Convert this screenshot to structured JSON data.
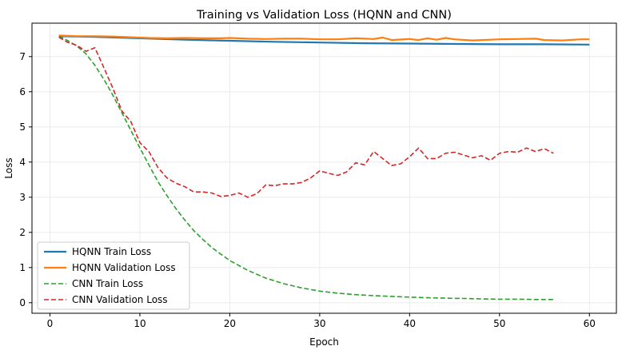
{
  "chart_data": {
    "type": "line",
    "title": "Training vs Validation Loss (HQNN and CNN)",
    "xlabel": "Epoch",
    "ylabel": "Loss",
    "xlim": [
      -2,
      63
    ],
    "ylim": [
      -0.3,
      7.95
    ],
    "xticks": [
      0,
      10,
      20,
      30,
      40,
      50,
      60
    ],
    "yticks": [
      0,
      1,
      2,
      3,
      4,
      5,
      6,
      7
    ],
    "grid": true,
    "legend_position": "lower-left",
    "series": [
      {
        "name": "HQNN Train Loss",
        "color": "#1f77b4",
        "style": "solid",
        "x": [
          1,
          5,
          10,
          15,
          20,
          25,
          30,
          35,
          40,
          45,
          50,
          55,
          60
        ],
        "y": [
          7.58,
          7.56,
          7.52,
          7.48,
          7.45,
          7.42,
          7.4,
          7.38,
          7.37,
          7.36,
          7.35,
          7.35,
          7.34
        ]
      },
      {
        "name": "HQNN Validation Loss",
        "color": "#ff7f0e",
        "style": "solid",
        "x": [
          1,
          3,
          5,
          7,
          9,
          11,
          13,
          15,
          17,
          19,
          20,
          22,
          24,
          26,
          28,
          30,
          32,
          34,
          36,
          37,
          38,
          40,
          41,
          42,
          43,
          44,
          45,
          47,
          50,
          52,
          54,
          55,
          57,
          59,
          60
        ],
        "y": [
          7.6,
          7.58,
          7.58,
          7.57,
          7.55,
          7.53,
          7.52,
          7.53,
          7.52,
          7.52,
          7.53,
          7.51,
          7.5,
          7.51,
          7.51,
          7.49,
          7.49,
          7.52,
          7.5,
          7.54,
          7.47,
          7.5,
          7.47,
          7.52,
          7.48,
          7.53,
          7.49,
          7.46,
          7.49,
          7.5,
          7.51,
          7.47,
          7.46,
          7.49,
          7.49
        ]
      },
      {
        "name": "CNN Train Loss",
        "color": "#2ca02c",
        "style": "dashed",
        "x": [
          1,
          2,
          3,
          4,
          5,
          6,
          7,
          8,
          9,
          10,
          11,
          12,
          13,
          14,
          15,
          16,
          17,
          18,
          19,
          20,
          22,
          24,
          26,
          28,
          30,
          32,
          34,
          36,
          38,
          40,
          42,
          44,
          46,
          48,
          50,
          52,
          54,
          56
        ],
        "y": [
          7.58,
          7.45,
          7.3,
          7.08,
          6.75,
          6.35,
          5.9,
          5.4,
          4.9,
          4.4,
          3.92,
          3.45,
          3.05,
          2.68,
          2.35,
          2.05,
          1.8,
          1.57,
          1.38,
          1.2,
          0.92,
          0.7,
          0.54,
          0.42,
          0.33,
          0.27,
          0.23,
          0.2,
          0.18,
          0.16,
          0.14,
          0.13,
          0.12,
          0.11,
          0.1,
          0.1,
          0.09,
          0.09
        ]
      },
      {
        "name": "CNN Validation Loss",
        "color": "#d62728",
        "style": "dashed",
        "x": [
          1,
          2,
          3,
          4,
          5,
          6,
          7,
          8,
          9,
          10,
          11,
          12,
          13,
          14,
          15,
          16,
          17,
          18,
          19,
          20,
          21,
          22,
          23,
          24,
          25,
          26,
          27,
          28,
          29,
          30,
          31,
          32,
          33,
          34,
          35,
          36,
          37,
          38,
          39,
          40,
          41,
          42,
          43,
          44,
          45,
          46,
          47,
          48,
          49,
          50,
          51,
          52,
          53,
          54,
          55,
          56
        ],
        "y": [
          7.55,
          7.4,
          7.32,
          7.15,
          7.25,
          6.68,
          6.1,
          5.45,
          5.15,
          4.55,
          4.3,
          3.85,
          3.55,
          3.4,
          3.3,
          3.15,
          3.15,
          3.12,
          3.02,
          3.05,
          3.12,
          3.0,
          3.1,
          3.35,
          3.33,
          3.38,
          3.38,
          3.42,
          3.55,
          3.75,
          3.68,
          3.62,
          3.72,
          3.98,
          3.92,
          4.3,
          4.1,
          3.9,
          3.95,
          4.15,
          4.4,
          4.1,
          4.1,
          4.25,
          4.28,
          4.2,
          4.12,
          4.18,
          4.05,
          4.25,
          4.3,
          4.28,
          4.4,
          4.3,
          4.38,
          4.25
        ]
      }
    ]
  }
}
